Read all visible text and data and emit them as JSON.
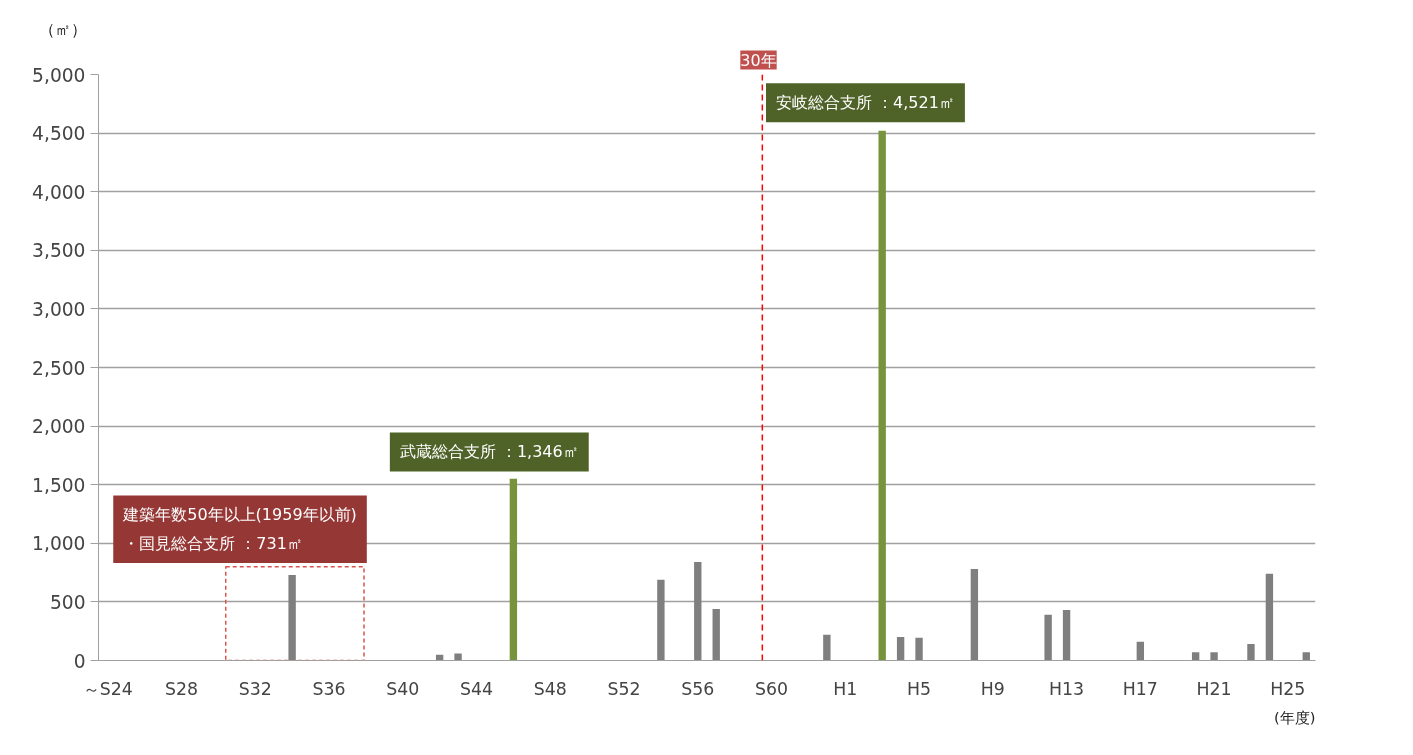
{
  "chart_data": {
    "type": "bar",
    "ylabel": "（㎡）",
    "xlabel": "(年度)",
    "categories": [
      "～S24",
      null,
      null,
      null,
      "S28",
      null,
      null,
      null,
      "S32",
      null,
      null,
      null,
      "S36",
      null,
      null,
      null,
      "S40",
      null,
      null,
      null,
      "S44",
      null,
      null,
      null,
      "S48",
      null,
      null,
      null,
      "S52",
      null,
      null,
      null,
      "S56",
      null,
      null,
      null,
      "S60",
      null,
      null,
      null,
      "H1",
      null,
      null,
      null,
      "H5",
      null,
      null,
      null,
      "H9",
      null,
      null,
      null,
      "H13",
      null,
      null,
      null,
      "H17",
      null,
      null,
      null,
      "H21",
      null,
      null,
      null,
      "H25",
      null
    ],
    "values": [
      0,
      0,
      0,
      0,
      0,
      0,
      0,
      0,
      0,
      0,
      730,
      0,
      0,
      0,
      0,
      0,
      0,
      0,
      50,
      60,
      0,
      0,
      1550,
      0,
      0,
      0,
      0,
      0,
      0,
      0,
      690,
      0,
      840,
      440,
      0,
      0,
      0,
      0,
      0,
      220,
      0,
      0,
      4520,
      200,
      195,
      0,
      0,
      780,
      0,
      0,
      0,
      390,
      430,
      0,
      0,
      0,
      160,
      0,
      0,
      70,
      70,
      0,
      140,
      740,
      0,
      70
    ],
    "colors": [
      "#7f7f7f",
      "#7f7f7f",
      "#7f7f7f",
      "#7f7f7f",
      "#7f7f7f",
      "#7f7f7f",
      "#7f7f7f",
      "#7f7f7f",
      "#7f7f7f",
      "#7f7f7f",
      "#7f7f7f",
      "#7f7f7f",
      "#7f7f7f",
      "#7f7f7f",
      "#7f7f7f",
      "#7f7f7f",
      "#7f7f7f",
      "#7f7f7f",
      "#7f7f7f",
      "#7f7f7f",
      "#7f7f7f",
      "#7f7f7f",
      "#77933c",
      "#7f7f7f",
      "#7f7f7f",
      "#7f7f7f",
      "#7f7f7f",
      "#7f7f7f",
      "#7f7f7f",
      "#7f7f7f",
      "#7f7f7f",
      "#7f7f7f",
      "#7f7f7f",
      "#7f7f7f",
      "#7f7f7f",
      "#7f7f7f",
      "#7f7f7f",
      "#7f7f7f",
      "#7f7f7f",
      "#7f7f7f",
      "#7f7f7f",
      "#7f7f7f",
      "#77933c",
      "#7f7f7f",
      "#7f7f7f",
      "#7f7f7f",
      "#7f7f7f",
      "#7f7f7f",
      "#7f7f7f",
      "#7f7f7f",
      "#7f7f7f",
      "#7f7f7f",
      "#7f7f7f",
      "#7f7f7f",
      "#7f7f7f",
      "#7f7f7f",
      "#7f7f7f",
      "#7f7f7f",
      "#7f7f7f",
      "#7f7f7f",
      "#7f7f7f",
      "#7f7f7f",
      "#7f7f7f",
      "#7f7f7f",
      "#7f7f7f",
      "#7f7f7f"
    ],
    "ylim": [
      0,
      5000
    ],
    "yticks": [
      {
        "value": 0,
        "label": "0"
      },
      {
        "value": 500,
        "label": "500"
      },
      {
        "value": 1000,
        "label": "1,000"
      },
      {
        "value": 1500,
        "label": "1,500"
      },
      {
        "value": 2000,
        "label": "2,000"
      },
      {
        "value": 2500,
        "label": "2,500"
      },
      {
        "value": 3000,
        "label": "3,000"
      },
      {
        "value": 3500,
        "label": "3,500"
      },
      {
        "value": 4000,
        "label": "4,000"
      },
      {
        "value": 4500,
        "label": "4,500"
      },
      {
        "value": 5000,
        "label": "5,000"
      }
    ],
    "grid": "y",
    "ref_lines": [
      {
        "axis": "x",
        "value": "S60",
        "label": "30年",
        "color": "#ff0000",
        "line_style": "dashed"
      }
    ],
    "annotations": [
      "武蔵総合支所 ：1,346㎡",
      "安岐総合支所 ：4,521㎡",
      "建築年数50年以上(1959年以前)\n・国見総合支所 ：731㎡"
    ]
  }
}
